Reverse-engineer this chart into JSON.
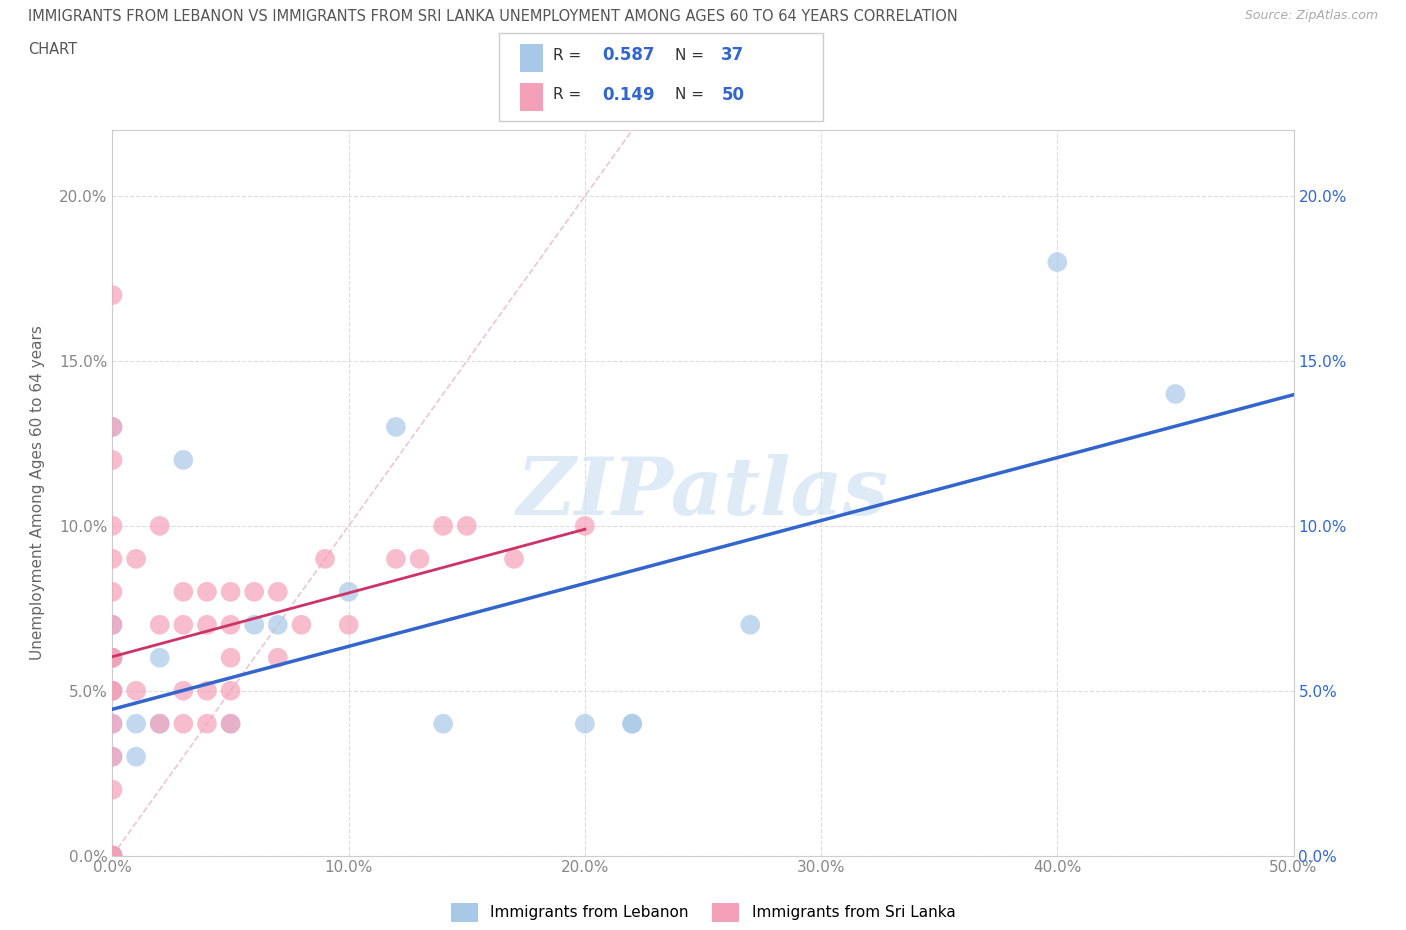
{
  "title_line1": "IMMIGRANTS FROM LEBANON VS IMMIGRANTS FROM SRI LANKA UNEMPLOYMENT AMONG AGES 60 TO 64 YEARS CORRELATION",
  "title_line2": "CHART",
  "source_text": "Source: ZipAtlas.com",
  "ylabel": "Unemployment Among Ages 60 to 64 years",
  "xlim": [
    0,
    0.5
  ],
  "ylim": [
    0,
    0.22
  ],
  "xticks": [
    0.0,
    0.1,
    0.2,
    0.3,
    0.4,
    0.5
  ],
  "xtick_labels": [
    "0.0%",
    "10.0%",
    "20.0%",
    "30.0%",
    "40.0%",
    "50.0%"
  ],
  "yticks": [
    0.0,
    0.05,
    0.1,
    0.15,
    0.2
  ],
  "ytick_labels": [
    "0.0%",
    "5.0%",
    "10.0%",
    "15.0%",
    "20.0%"
  ],
  "lebanon_color": "#a8c8e8",
  "sri_lanka_color": "#f4a0b8",
  "lebanon_line_color": "#3366cc",
  "sri_lanka_line_color": "#cc3366",
  "lebanon_R": "0.587",
  "lebanon_N": "37",
  "sri_lanka_R": "0.149",
  "sri_lanka_N": "50",
  "lebanon_scatter_x": [
    0.0,
    0.0,
    0.0,
    0.0,
    0.0,
    0.0,
    0.0,
    0.0,
    0.0,
    0.01,
    0.01,
    0.02,
    0.02,
    0.03,
    0.05,
    0.06,
    0.07,
    0.1,
    0.12,
    0.14,
    0.2,
    0.22,
    0.22,
    0.27,
    0.4,
    0.45
  ],
  "lebanon_scatter_y": [
    0.0,
    0.0,
    0.0,
    0.03,
    0.04,
    0.05,
    0.06,
    0.07,
    0.13,
    0.03,
    0.04,
    0.04,
    0.06,
    0.12,
    0.04,
    0.07,
    0.07,
    0.08,
    0.13,
    0.04,
    0.04,
    0.04,
    0.04,
    0.07,
    0.18,
    0.14
  ],
  "sri_lanka_scatter_x": [
    0.0,
    0.0,
    0.0,
    0.0,
    0.0,
    0.0,
    0.0,
    0.0,
    0.0,
    0.0,
    0.0,
    0.0,
    0.0,
    0.0,
    0.0,
    0.0,
    0.0,
    0.01,
    0.01,
    0.02,
    0.02,
    0.02,
    0.03,
    0.03,
    0.03,
    0.03,
    0.04,
    0.04,
    0.04,
    0.04,
    0.05,
    0.05,
    0.05,
    0.05,
    0.05,
    0.06,
    0.07,
    0.07,
    0.08,
    0.09,
    0.1,
    0.12,
    0.13,
    0.14,
    0.15,
    0.17,
    0.2
  ],
  "sri_lanka_scatter_y": [
    0.0,
    0.0,
    0.0,
    0.02,
    0.03,
    0.04,
    0.05,
    0.05,
    0.06,
    0.06,
    0.07,
    0.08,
    0.09,
    0.1,
    0.12,
    0.13,
    0.17,
    0.05,
    0.09,
    0.04,
    0.07,
    0.1,
    0.04,
    0.05,
    0.07,
    0.08,
    0.04,
    0.05,
    0.07,
    0.08,
    0.04,
    0.05,
    0.06,
    0.07,
    0.08,
    0.08,
    0.06,
    0.08,
    0.07,
    0.09,
    0.07,
    0.09,
    0.09,
    0.1,
    0.1,
    0.09,
    0.1
  ],
  "watermark_text": "ZIPatlas",
  "watermark_color": "#c8dff0",
  "background_color": "#ffffff",
  "grid_color": "#dddddd",
  "legend_label_lebanon": "Immigrants from Lebanon",
  "legend_label_sri_lanka": "Immigrants from Sri Lanka"
}
